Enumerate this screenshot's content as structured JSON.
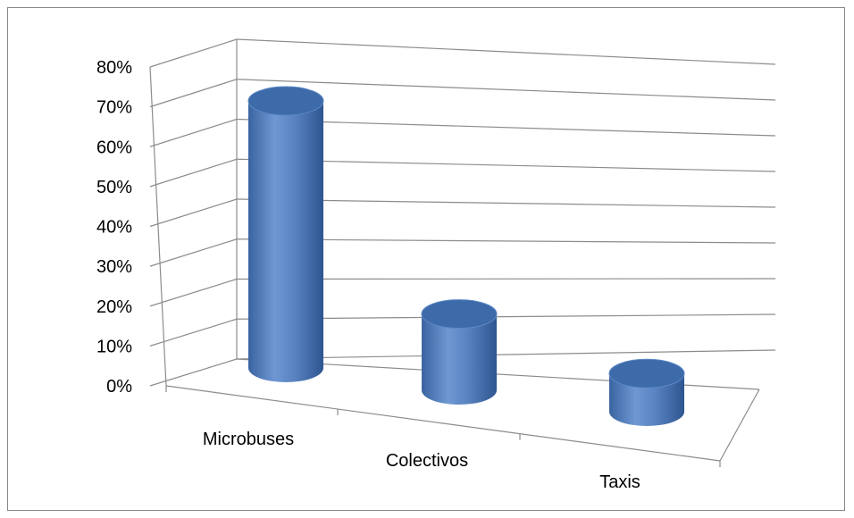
{
  "chart_data": {
    "type": "bar",
    "style": "3d-cylinder",
    "categories": [
      "Microbuses",
      "Colectivos",
      "Taxis"
    ],
    "values": [
      0.7,
      0.2,
      0.1
    ],
    "yticks": [
      "0%",
      "10%",
      "20%",
      "30%",
      "40%",
      "50%",
      "60%",
      "70%",
      "80%"
    ],
    "ylim": [
      0,
      0.8
    ],
    "grid": true,
    "legend": "none",
    "bar_color": "#4F81BD"
  }
}
